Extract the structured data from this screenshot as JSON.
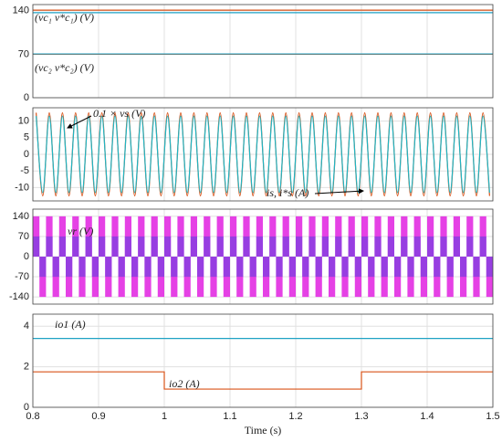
{
  "chart_data": [
    {
      "type": "line",
      "xlim": [
        0.8,
        1.5
      ],
      "xticks": [
        0.8,
        0.9,
        1,
        1.1,
        1.2,
        1.3,
        1.4,
        1.5
      ],
      "ylim": [
        0,
        150
      ],
      "yticks": [
        0,
        70,
        140
      ],
      "grid": true,
      "annotations": [
        "(vc₁ v*c₁) (V)",
        "(vc₂ v*c₂) (V)"
      ],
      "series": [
        {
          "color": "#d95319",
          "x": [
            0.8,
            1.5
          ],
          "values": [
            141,
            141
          ]
        },
        {
          "color": "#1fa2c4",
          "x": [
            0.8,
            1.5
          ],
          "values": [
            137,
            137
          ]
        },
        {
          "color": "#d95319",
          "x": [
            0.8,
            1.5
          ],
          "values": [
            70,
            70
          ]
        },
        {
          "color": "#1fa2c4",
          "x": [
            0.8,
            1.5
          ],
          "values": [
            70.5,
            70.5
          ]
        }
      ]
    },
    {
      "type": "line",
      "smooth": true,
      "xlim": [
        0.8,
        1.5
      ],
      "xticks": [
        0.8,
        0.9,
        1,
        1.1,
        1.2,
        1.3,
        1.4,
        1.5
      ],
      "ylim": [
        -14,
        14
      ],
      "yticks": [
        -10,
        -5,
        0,
        5,
        10
      ],
      "grid": true,
      "annotations": [
        "0.1 × vs (V)",
        "is, i*s (A)"
      ],
      "x": [
        0.805,
        0.815,
        0.825,
        0.835,
        0.845,
        0.855,
        0.865,
        0.875,
        0.885,
        0.895,
        0.905,
        0.915,
        0.925,
        0.935,
        0.945,
        0.955,
        0.965,
        0.975,
        0.985,
        0.995,
        1.005,
        1.015,
        1.025,
        1.035,
        1.045,
        1.055,
        1.065,
        1.075,
        1.085,
        1.095,
        1.105,
        1.115,
        1.125,
        1.135,
        1.145,
        1.155,
        1.165,
        1.175,
        1.185,
        1.195,
        1.205,
        1.215,
        1.225,
        1.235,
        1.245,
        1.255,
        1.265,
        1.275,
        1.285,
        1.295,
        1.305,
        1.315,
        1.325,
        1.335,
        1.345,
        1.355,
        1.365,
        1.375,
        1.385,
        1.395,
        1.405,
        1.415,
        1.425,
        1.435,
        1.445,
        1.455,
        1.465,
        1.475,
        1.485,
        1.495
      ],
      "series": [
        {
          "color": "#d95319",
          "values": [
            12.5,
            -12.5,
            12.5,
            -12.5,
            12.5,
            -12.5,
            12.5,
            -12.5,
            12.5,
            -12.5,
            12.5,
            -12.5,
            12.5,
            -12.5,
            12.5,
            -12.5,
            12.5,
            -12.5,
            12.5,
            -12.5,
            12.5,
            -12.5,
            12.5,
            -12.5,
            12.5,
            -12.5,
            12.5,
            -12.5,
            12.5,
            -12.5,
            12.5,
            -12.5,
            12.5,
            -12.5,
            12.5,
            -12.5,
            12.5,
            -12.5,
            12.5,
            -12.5,
            12.5,
            -12.5,
            12.5,
            -12.5,
            12.5,
            -12.5,
            12.5,
            -12.5,
            12.5,
            -12.5,
            12.5,
            -12.5,
            12.5,
            -12.5,
            12.5,
            -12.5,
            12.5,
            -12.5,
            12.5,
            -12.5,
            12.5,
            -12.5,
            12.5,
            -12.5,
            12.5,
            -12.5,
            12.5,
            -12.5,
            12.5,
            -12.5
          ]
        },
        {
          "color": "#1fb5c4",
          "values": [
            11.5,
            -11.5,
            11.5,
            -11.5,
            11.5,
            -11.5,
            11.5,
            -11.5,
            11.5,
            -11.5,
            11.5,
            -11.5,
            11.5,
            -11.5,
            11.5,
            -11.5,
            11.5,
            -11.5,
            11.5,
            -11.5,
            11.5,
            -11.5,
            11.5,
            -11.5,
            11.5,
            -11.5,
            11.5,
            -11.5,
            11.5,
            -11.5,
            11.5,
            -11.5,
            11.5,
            -11.5,
            11.5,
            -11.5,
            11.5,
            -11.5,
            11.5,
            -11.5,
            11.5,
            -11.5,
            11.5,
            -11.5,
            11.5,
            -11.5,
            11.5,
            -11.5,
            11.5,
            -11.5,
            11.5,
            -11.5,
            11.5,
            -11.5,
            11.5,
            -11.5,
            11.5,
            -11.5,
            11.5,
            -11.5,
            11.5,
            -11.5,
            11.5,
            -11.5,
            11.5,
            -11.5,
            11.5,
            -11.5,
            11.5,
            -11.5
          ]
        }
      ]
    },
    {
      "type": "bar",
      "xlim": [
        0.8,
        1.5
      ],
      "xticks": [
        0.8,
        0.9,
        1,
        1.1,
        1.2,
        1.3,
        1.4,
        1.5
      ],
      "ylim": [
        -165,
        165
      ],
      "yticks": [
        -140,
        -70,
        0,
        70,
        140
      ],
      "grid": true,
      "annotations": [
        "vr (V)"
      ],
      "x": [
        0.805,
        0.815,
        0.825,
        0.835,
        0.845,
        0.855,
        0.865,
        0.875,
        0.885,
        0.895,
        0.905,
        0.915,
        0.925,
        0.935,
        0.945,
        0.955,
        0.965,
        0.975,
        0.985,
        0.995,
        1.005,
        1.015,
        1.025,
        1.035,
        1.045,
        1.055,
        1.065,
        1.075,
        1.085,
        1.095,
        1.105,
        1.115,
        1.125,
        1.135,
        1.145,
        1.155,
        1.165,
        1.175,
        1.185,
        1.195,
        1.205,
        1.215,
        1.225,
        1.235,
        1.245,
        1.255,
        1.265,
        1.275,
        1.285,
        1.295,
        1.305,
        1.315,
        1.325,
        1.335,
        1.345,
        1.355,
        1.365,
        1.375,
        1.385,
        1.395,
        1.405,
        1.415,
        1.425,
        1.435,
        1.445,
        1.455,
        1.465,
        1.475,
        1.485,
        1.495
      ],
      "series": [
        {
          "color": "#e020e0",
          "values": [
            140,
            -140,
            140,
            -140,
            140,
            -140,
            140,
            -140,
            140,
            -140,
            140,
            -140,
            140,
            -140,
            140,
            -140,
            140,
            -140,
            140,
            -140,
            140,
            -140,
            140,
            -140,
            140,
            -140,
            140,
            -140,
            140,
            -140,
            140,
            -140,
            140,
            -140,
            140,
            -140,
            140,
            -140,
            140,
            -140,
            140,
            -140,
            140,
            -140,
            140,
            -140,
            140,
            -140,
            140,
            -140,
            140,
            -140,
            140,
            -140,
            140,
            -140,
            140,
            -140,
            140,
            -140,
            140,
            -140,
            140,
            -140,
            140,
            -140,
            140,
            -140,
            140,
            -140
          ]
        },
        {
          "color": "#8a3ee0",
          "values": [
            70,
            -70,
            70,
            -70,
            70,
            -70,
            70,
            -70,
            70,
            -70,
            70,
            -70,
            70,
            -70,
            70,
            -70,
            70,
            -70,
            70,
            -70,
            70,
            -70,
            70,
            -70,
            70,
            -70,
            70,
            -70,
            70,
            -70,
            70,
            -70,
            70,
            -70,
            70,
            -70,
            70,
            -70,
            70,
            -70,
            70,
            -70,
            70,
            -70,
            70,
            -70,
            70,
            -70,
            70,
            -70,
            70,
            -70,
            70,
            -70,
            70,
            -70,
            70,
            -70,
            70,
            -70,
            70,
            -70,
            70,
            -70,
            70,
            -70,
            70,
            -70,
            70,
            -70
          ]
        }
      ]
    },
    {
      "type": "line",
      "xlim": [
        0.8,
        1.5
      ],
      "xticks": [
        0.8,
        0.9,
        1,
        1.1,
        1.2,
        1.3,
        1.4,
        1.5
      ],
      "ylim": [
        0,
        4.6
      ],
      "yticks": [
        0,
        2,
        4
      ],
      "grid": true,
      "xlabel": "Time (s)",
      "annotations": [
        "io1 (A)",
        "io2 (A)"
      ],
      "series": [
        {
          "color": "#1fa2c4",
          "x": [
            0.8,
            1.5
          ],
          "values": [
            3.4,
            3.4
          ]
        },
        {
          "color": "#d95319",
          "x": [
            0.8,
            1,
            1,
            1.3,
            1.3,
            1.5
          ],
          "values": [
            1.75,
            1.75,
            0.9,
            0.9,
            1.75,
            1.75
          ]
        }
      ]
    }
  ]
}
